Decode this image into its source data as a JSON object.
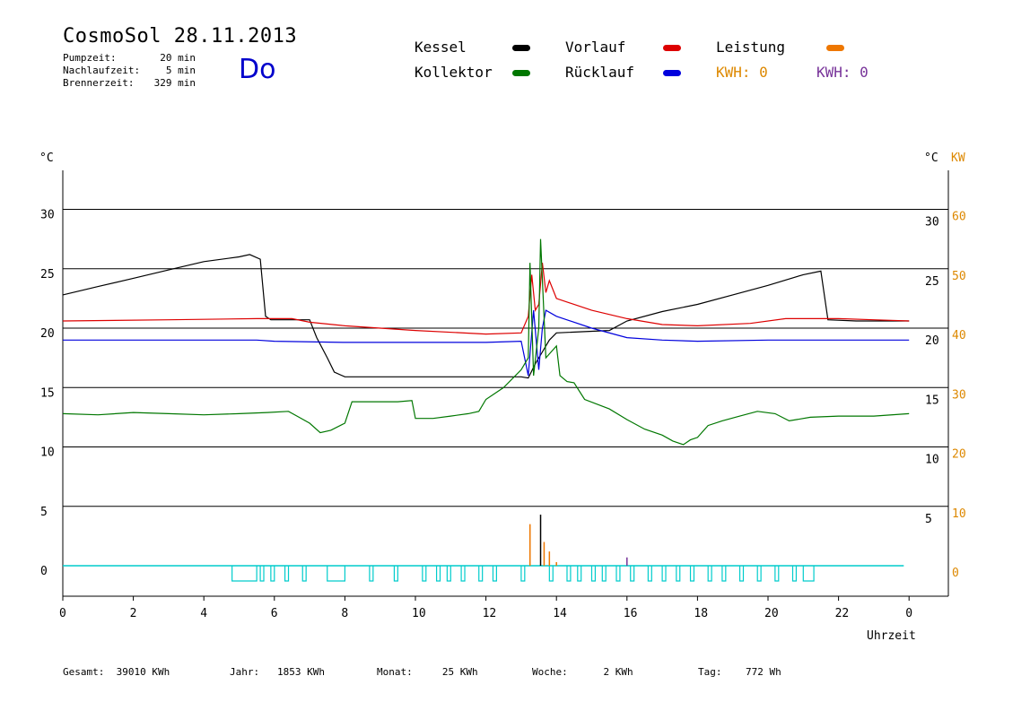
{
  "header": {
    "title": "CosmoSol 28.11.2013",
    "day": "Do",
    "stats": [
      {
        "label": "Pumpzeit:",
        "value": "20 min"
      },
      {
        "label": "Nachlaufzeit:",
        "value": "5 min"
      },
      {
        "label": "Brennerzeit:",
        "value": "329 min"
      }
    ]
  },
  "legend": {
    "kessel": {
      "label": "Kessel",
      "color": "#000000"
    },
    "kollektor": {
      "label": "Kollektor",
      "color": "#007700"
    },
    "vorlauf": {
      "label": "Vorlauf",
      "color": "#dd0000"
    },
    "ruecklauf": {
      "label": "Rücklauf",
      "color": "#0000dd"
    },
    "leistung": {
      "label": "Leistung",
      "color": "#ee7700"
    },
    "kwh1": {
      "label": "KWH: 0",
      "color": "#dd8800"
    },
    "kwh2": {
      "label": "KWH: 0",
      "color": "#773399"
    }
  },
  "axes": {
    "left_unit": "°C",
    "right_unit": "°C",
    "right_unit2": "KW",
    "xlabel": "Uhrzeit"
  },
  "footer": {
    "gesamt": "Gesamt:  39010 KWh",
    "jahr": "Jahr:   1853 KWh",
    "monat": "Monat:     25 KWh",
    "woche": "Woche:      2 KWh",
    "tag": "Tag:    772 Wh"
  },
  "chart_data": {
    "type": "line",
    "x_unit": "hours",
    "x_ticks": [
      "0",
      "2",
      "4",
      "6",
      "8",
      "10",
      "12",
      "14",
      "16",
      "18",
      "20",
      "22",
      "0"
    ],
    "y_ticks": [
      "0",
      "5",
      "10",
      "15",
      "20",
      "25",
      "30"
    ],
    "y_right_ticks": [
      "5",
      "10",
      "15",
      "20",
      "25",
      "30"
    ],
    "y_right2_ticks": [
      "0",
      "10",
      "20",
      "30",
      "40",
      "50",
      "60"
    ],
    "ylim": [
      -2.5,
      33.5
    ],
    "xlim": [
      0,
      24.9
    ],
    "grid": "horizontal",
    "series": [
      {
        "name": "Kessel",
        "color": "#000000",
        "points": [
          [
            0,
            22.8
          ],
          [
            1,
            23.5
          ],
          [
            2,
            24.2
          ],
          [
            3,
            24.9
          ],
          [
            4,
            25.6
          ],
          [
            5,
            26.0
          ],
          [
            5.3,
            26.2
          ],
          [
            5.6,
            25.8
          ],
          [
            5.75,
            21.0
          ],
          [
            5.9,
            20.7
          ],
          [
            7.0,
            20.7
          ],
          [
            7.2,
            19.2
          ],
          [
            7.5,
            17.5
          ],
          [
            7.7,
            16.3
          ],
          [
            8.0,
            15.9
          ],
          [
            10.5,
            15.9
          ],
          [
            13.0,
            15.9
          ],
          [
            13.2,
            15.8
          ],
          [
            13.4,
            17.0
          ],
          [
            13.6,
            18.0
          ],
          [
            13.8,
            19.0
          ],
          [
            14.0,
            19.6
          ],
          [
            15.5,
            19.8
          ],
          [
            16.0,
            20.6
          ],
          [
            17.0,
            21.4
          ],
          [
            18.0,
            22.0
          ],
          [
            19.0,
            22.8
          ],
          [
            20.0,
            23.6
          ],
          [
            21.0,
            24.5
          ],
          [
            21.5,
            24.8
          ],
          [
            21.7,
            20.7
          ],
          [
            22.5,
            20.6
          ],
          [
            24.0,
            20.6
          ]
        ]
      },
      {
        "name": "Vorlauf",
        "color": "#dd0000",
        "points": [
          [
            0,
            20.6
          ],
          [
            3,
            20.7
          ],
          [
            5.5,
            20.8
          ],
          [
            6.5,
            20.8
          ],
          [
            7.0,
            20.5
          ],
          [
            8.0,
            20.2
          ],
          [
            10,
            19.8
          ],
          [
            12,
            19.5
          ],
          [
            13.0,
            19.6
          ],
          [
            13.2,
            21.0
          ],
          [
            13.3,
            24.5
          ],
          [
            13.4,
            21.5
          ],
          [
            13.5,
            22.0
          ],
          [
            13.6,
            25.5
          ],
          [
            13.7,
            23.0
          ],
          [
            13.8,
            24.0
          ],
          [
            14.0,
            22.5
          ],
          [
            15.0,
            21.5
          ],
          [
            16.0,
            20.8
          ],
          [
            17.0,
            20.3
          ],
          [
            18.0,
            20.2
          ],
          [
            19.5,
            20.4
          ],
          [
            20.5,
            20.8
          ],
          [
            22.0,
            20.8
          ],
          [
            23.0,
            20.7
          ],
          [
            24.0,
            20.6
          ]
        ]
      },
      {
        "name": "Rücklauf",
        "color": "#0000dd",
        "points": [
          [
            0,
            19.0
          ],
          [
            5.5,
            19.0
          ],
          [
            6.0,
            18.9
          ],
          [
            8.0,
            18.8
          ],
          [
            12,
            18.8
          ],
          [
            13.0,
            18.9
          ],
          [
            13.2,
            16.0
          ],
          [
            13.35,
            21.5
          ],
          [
            13.5,
            16.5
          ],
          [
            13.6,
            20.0
          ],
          [
            13.7,
            21.5
          ],
          [
            14.0,
            21.0
          ],
          [
            15.0,
            20.0
          ],
          [
            16.0,
            19.2
          ],
          [
            17.0,
            19.0
          ],
          [
            18.0,
            18.9
          ],
          [
            20.0,
            19.0
          ],
          [
            22.0,
            19.0
          ],
          [
            24.0,
            19.0
          ]
        ]
      },
      {
        "name": "Kollektor",
        "color": "#007700",
        "points": [
          [
            0,
            12.8
          ],
          [
            1,
            12.7
          ],
          [
            2,
            12.9
          ],
          [
            3,
            12.8
          ],
          [
            4,
            12.7
          ],
          [
            5,
            12.8
          ],
          [
            5.8,
            12.9
          ],
          [
            6.4,
            13.0
          ],
          [
            6.7,
            12.5
          ],
          [
            7.0,
            12.0
          ],
          [
            7.3,
            11.2
          ],
          [
            7.6,
            11.4
          ],
          [
            8.0,
            12.0
          ],
          [
            8.2,
            13.8
          ],
          [
            9.5,
            13.8
          ],
          [
            9.9,
            13.9
          ],
          [
            10.0,
            12.4
          ],
          [
            10.5,
            12.4
          ],
          [
            11.0,
            12.6
          ],
          [
            11.5,
            12.8
          ],
          [
            11.8,
            13.0
          ],
          [
            12.0,
            14.0
          ],
          [
            12.5,
            15.0
          ],
          [
            13.0,
            16.5
          ],
          [
            13.2,
            17.5
          ],
          [
            13.25,
            25.5
          ],
          [
            13.35,
            16.0
          ],
          [
            13.5,
            20.0
          ],
          [
            13.55,
            27.5
          ],
          [
            13.7,
            17.5
          ],
          [
            14.0,
            18.5
          ],
          [
            14.1,
            16.0
          ],
          [
            14.3,
            15.5
          ],
          [
            14.5,
            15.4
          ],
          [
            14.8,
            14.0
          ],
          [
            15.5,
            13.2
          ],
          [
            16.0,
            12.3
          ],
          [
            16.5,
            11.5
          ],
          [
            17.0,
            11.0
          ],
          [
            17.3,
            10.5
          ],
          [
            17.6,
            10.2
          ],
          [
            17.8,
            10.6
          ],
          [
            18.0,
            10.8
          ],
          [
            18.3,
            11.8
          ],
          [
            18.7,
            12.2
          ],
          [
            19.2,
            12.6
          ],
          [
            19.7,
            13.0
          ],
          [
            20.2,
            12.8
          ],
          [
            20.6,
            12.2
          ],
          [
            21.2,
            12.5
          ],
          [
            22.0,
            12.6
          ],
          [
            23.0,
            12.6
          ],
          [
            24.0,
            12.8
          ]
        ]
      }
    ],
    "burner_pulses_h": [
      [
        4.8,
        5.5
      ],
      [
        5.6,
        5.7
      ],
      [
        5.9,
        6.0
      ],
      [
        6.3,
        6.4
      ],
      [
        6.8,
        6.9
      ],
      [
        7.5,
        8.0
      ],
      [
        8.7,
        8.8
      ],
      [
        9.4,
        9.5
      ],
      [
        10.2,
        10.3
      ],
      [
        10.6,
        10.7
      ],
      [
        10.9,
        11.0
      ],
      [
        11.3,
        11.4
      ],
      [
        11.8,
        11.9
      ],
      [
        12.2,
        12.3
      ],
      [
        13.0,
        13.1
      ],
      [
        13.8,
        13.9
      ],
      [
        14.3,
        14.4
      ],
      [
        14.6,
        14.7
      ],
      [
        15.0,
        15.1
      ],
      [
        15.3,
        15.4
      ],
      [
        15.7,
        15.8
      ],
      [
        16.1,
        16.2
      ],
      [
        16.6,
        16.7
      ],
      [
        17.0,
        17.1
      ],
      [
        17.4,
        17.5
      ],
      [
        17.8,
        17.9
      ],
      [
        18.3,
        18.4
      ],
      [
        18.7,
        18.8
      ],
      [
        19.2,
        19.3
      ],
      [
        19.7,
        19.8
      ],
      [
        20.2,
        20.3
      ],
      [
        20.7,
        20.8
      ],
      [
        21.0,
        21.3
      ]
    ],
    "power_spikes": [
      [
        13.25,
        3.5
      ],
      [
        13.55,
        4.3
      ],
      [
        13.65,
        2.0
      ],
      [
        13.8,
        1.2
      ],
      [
        14.0,
        0.3
      ],
      [
        16.0,
        0.7
      ]
    ]
  }
}
